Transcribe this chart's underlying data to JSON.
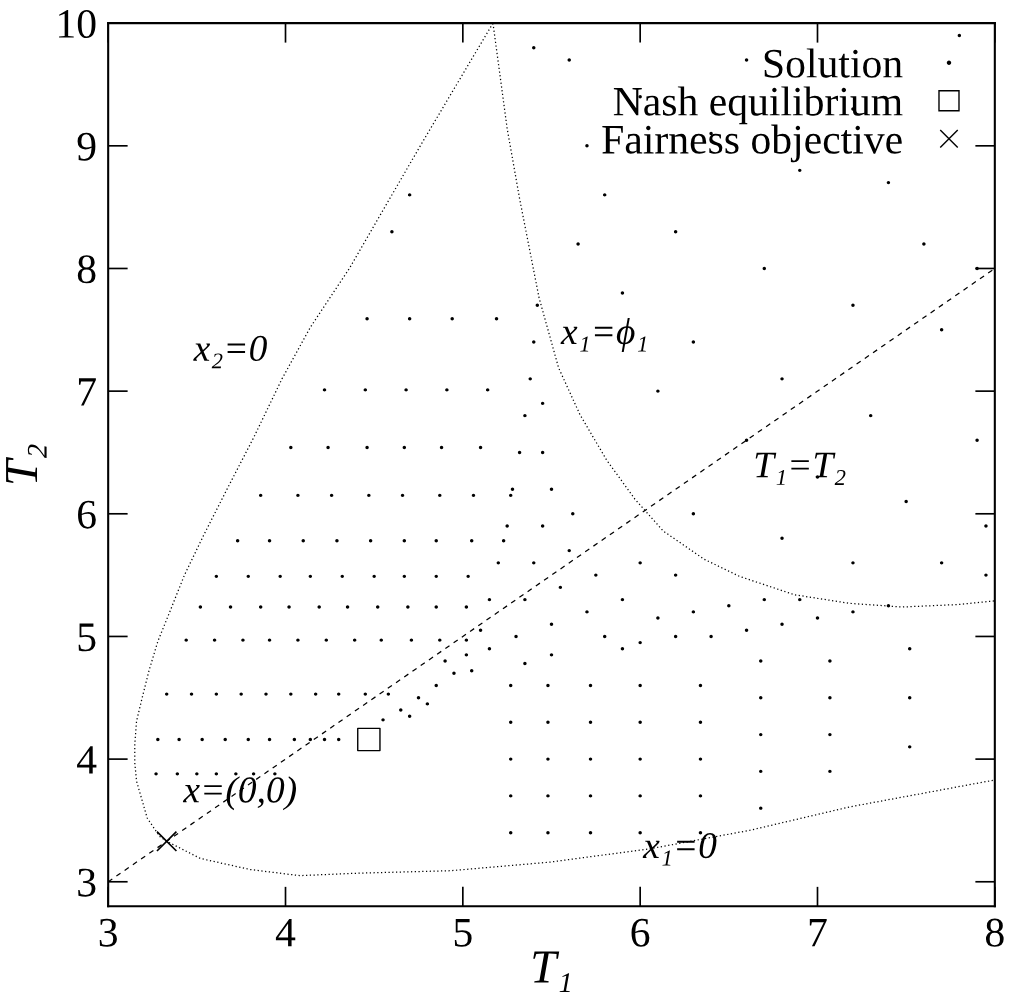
{
  "chart_data": {
    "type": "scatter",
    "xlabel": "T₁",
    "ylabel": "T₂",
    "xlim": [
      3,
      8
    ],
    "ylim": [
      2.8,
      10
    ],
    "xticks": [
      3,
      4,
      5,
      6,
      7,
      8
    ],
    "yticks": [
      3,
      4,
      5,
      6,
      7,
      8,
      9,
      10
    ],
    "grid": false,
    "legend": "top right",
    "series": [
      {
        "name": "Solution",
        "marker": "circle",
        "color": "#000000",
        "x": [
          4.46,
          4.7,
          4.94,
          5.19,
          4.22,
          4.45,
          4.68,
          4.91,
          5.14,
          4.03,
          4.24,
          4.46,
          4.67,
          4.88,
          5.1,
          3.86,
          4.07,
          4.26,
          4.47,
          4.66,
          4.87,
          5.06,
          5.27,
          3.73,
          3.91,
          4.1,
          4.29,
          4.48,
          4.67,
          4.85,
          5.05,
          5.23,
          3.61,
          3.79,
          3.97,
          4.14,
          4.32,
          4.5,
          4.67,
          4.85,
          5.03,
          3.52,
          3.69,
          3.86,
          4.02,
          4.19,
          4.35,
          4.52,
          4.69,
          4.85,
          5.02,
          3.44,
          3.6,
          3.76,
          3.91,
          4.07,
          4.23,
          4.39,
          4.54,
          4.71,
          4.87,
          5.02,
          3.33,
          3.47,
          3.61,
          3.75,
          3.89,
          4.03,
          4.17,
          4.3,
          4.45,
          4.58,
          3.28,
          3.4,
          3.53,
          3.66,
          3.79,
          3.91,
          4.05,
          4.14,
          4.22,
          4.3,
          3.27,
          3.39,
          3.5,
          3.61,
          3.72,
          3.82,
          3.94,
          5.27,
          5.27,
          5.27,
          5.27,
          5.27,
          5.48,
          5.48,
          5.48,
          5.48,
          5.48,
          5.72,
          5.72,
          5.72,
          5.72,
          5.72,
          6.0,
          6.0,
          6.0,
          6.0,
          6.0,
          6.34,
          6.34,
          6.34,
          6.34,
          6.34,
          6.68,
          6.68,
          6.68,
          6.68,
          6.68,
          7.07,
          7.07,
          7.07,
          7.07,
          7.52,
          7.52,
          7.52,
          5.42,
          5.4,
          5.38,
          5.35,
          5.45,
          5.32,
          5.45,
          5.28,
          5.5,
          5.25,
          5.45,
          5.62,
          5.2,
          5.4,
          5.6,
          5.15,
          5.35,
          5.55,
          5.75,
          5.1,
          5.3,
          5.5,
          5.7,
          5.9,
          6.0,
          6.2,
          6.1,
          6.3,
          6.5,
          6.7,
          6.9,
          6.4,
          6.6,
          6.8,
          7.0,
          7.2,
          7.4,
          5.8,
          6.0,
          6.2,
          5.5,
          5.35,
          5.9,
          5.02,
          4.95,
          4.85,
          4.75,
          4.65,
          4.55,
          4.9,
          5.05,
          5.15,
          4.8,
          4.7,
          5.6,
          6.0,
          6.4,
          6.9,
          7.4,
          7.8,
          5.8,
          6.2,
          6.7,
          7.2,
          7.7,
          5.9,
          6.3,
          6.8,
          7.3,
          7.9,
          6.1,
          6.6,
          7.0,
          7.5,
          7.95,
          6.3,
          6.8,
          7.2,
          7.7,
          7.95,
          5.4,
          5.7,
          6.6,
          7.2,
          7.6,
          5.65,
          7.9,
          4.6,
          4.7
        ],
        "values": [
          7.59,
          7.59,
          7.59,
          7.59,
          7.01,
          7.01,
          7.01,
          7.01,
          7.01,
          6.54,
          6.54,
          6.54,
          6.54,
          6.54,
          6.54,
          6.15,
          6.15,
          6.15,
          6.15,
          6.15,
          6.15,
          6.15,
          6.15,
          5.78,
          5.78,
          5.78,
          5.78,
          5.78,
          5.78,
          5.78,
          5.78,
          5.78,
          5.49,
          5.49,
          5.49,
          5.49,
          5.49,
          5.49,
          5.49,
          5.49,
          5.49,
          5.24,
          5.24,
          5.24,
          5.24,
          5.24,
          5.24,
          5.24,
          5.24,
          5.24,
          5.24,
          4.97,
          4.97,
          4.97,
          4.97,
          4.97,
          4.97,
          4.97,
          4.97,
          4.97,
          4.97,
          4.97,
          4.53,
          4.53,
          4.53,
          4.53,
          4.53,
          4.53,
          4.53,
          4.53,
          4.53,
          4.53,
          4.16,
          4.16,
          4.16,
          4.16,
          4.16,
          4.16,
          4.16,
          4.16,
          4.16,
          4.16,
          3.88,
          3.88,
          3.88,
          3.88,
          3.88,
          3.88,
          3.88,
          3.4,
          3.7,
          4.0,
          4.3,
          4.6,
          3.4,
          3.7,
          4.0,
          4.3,
          4.6,
          3.4,
          3.7,
          4.0,
          4.3,
          4.6,
          3.4,
          3.7,
          4.0,
          4.3,
          4.6,
          3.4,
          3.7,
          4.0,
          4.3,
          4.6,
          3.6,
          3.9,
          4.2,
          4.5,
          4.8,
          3.9,
          4.2,
          4.5,
          4.8,
          4.1,
          4.5,
          4.9,
          7.7,
          7.4,
          7.1,
          6.8,
          6.9,
          6.5,
          6.5,
          6.2,
          6.2,
          5.9,
          5.9,
          6.0,
          5.6,
          5.6,
          5.7,
          5.3,
          5.3,
          5.4,
          5.5,
          5.05,
          5.0,
          5.1,
          5.2,
          5.3,
          5.6,
          5.5,
          5.15,
          5.2,
          5.25,
          5.3,
          5.3,
          5.0,
          5.05,
          5.1,
          5.15,
          5.2,
          5.25,
          5.0,
          4.95,
          5.0,
          4.85,
          4.78,
          4.9,
          4.85,
          4.7,
          4.6,
          4.5,
          4.4,
          4.32,
          4.8,
          4.72,
          4.9,
          4.45,
          4.35,
          9.7,
          9.4,
          9.1,
          8.8,
          8.7,
          9.9,
          8.6,
          8.3,
          8.0,
          7.7,
          7.5,
          7.8,
          7.4,
          7.1,
          6.8,
          6.6,
          7.0,
          6.6,
          6.3,
          6.1,
          5.9,
          6.0,
          5.8,
          5.6,
          5.6,
          5.5,
          9.8,
          9.0,
          9.7,
          9.3,
          8.2,
          8.2,
          8.0,
          8.3,
          8.6
        ]
      },
      {
        "type": "line",
        "line_style": "dotted",
        "color": "#000000",
        "x": [
          5.17,
          4.76,
          4.36,
          4.14,
          3.98,
          3.82,
          3.67,
          3.54,
          3.43,
          3.35,
          3.28,
          3.23,
          3.19,
          3.16,
          3.15,
          3.15,
          3.16,
          3.22,
          3.29,
          3.33,
          3.52,
          3.8,
          4.08,
          4.41,
          4.93,
          5.49,
          6.06,
          6.62,
          7.18,
          8.0
        ],
        "values": [
          10.0,
          9.0,
          8.0,
          7.52,
          7.1,
          6.62,
          6.2,
          5.83,
          5.5,
          5.21,
          4.96,
          4.72,
          4.49,
          4.31,
          4.12,
          3.97,
          3.82,
          3.52,
          3.37,
          3.33,
          3.19,
          3.1,
          3.05,
          3.07,
          3.09,
          3.16,
          3.27,
          3.42,
          3.61,
          3.83
        ]
      },
      {
        "type": "line",
        "line_style": "dotted",
        "color": "#000000",
        "x": [
          5.17,
          5.25,
          5.32,
          5.43,
          5.54,
          5.66,
          5.81,
          5.97,
          6.13,
          6.36,
          6.56,
          6.87,
          7.18,
          7.48,
          7.79,
          8.0
        ],
        "values": [
          10.0,
          9.14,
          8.57,
          7.76,
          7.19,
          6.81,
          6.44,
          6.12,
          5.86,
          5.63,
          5.49,
          5.34,
          5.27,
          5.24,
          5.26,
          5.29
        ]
      },
      {
        "type": "line",
        "line_style": "dashed",
        "color": "#000000",
        "x": [
          3,
          8
        ],
        "values": [
          3,
          8
        ]
      },
      {
        "name": "Nash equilibrium",
        "marker": "square",
        "color": "#000000",
        "x": [
          4.47
        ],
        "values": [
          4.16
        ]
      },
      {
        "name": "Fairness objective",
        "marker": "cross",
        "color": "#000000",
        "x": [
          3.33
        ],
        "values": [
          3.33
        ]
      }
    ],
    "annotations": [
      "x₂=0",
      "x₁=ϕ₁",
      "T₁=T₂",
      "x=(0,0)",
      "x₁=0"
    ]
  }
}
